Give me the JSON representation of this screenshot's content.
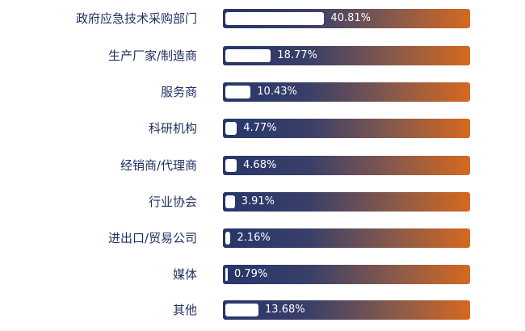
{
  "chart_data": {
    "type": "bar",
    "orientation": "horizontal",
    "categories": [
      "政府应急技术采购部门",
      "生产厂家/制造商",
      "服务商",
      "科研机构",
      "经销商/代理商",
      "行业协会",
      "进出口/贸易公司",
      "媒体",
      "其他"
    ],
    "values": [
      40.81,
      18.77,
      10.43,
      4.77,
      4.68,
      3.91,
      2.16,
      0.79,
      13.68
    ],
    "value_labels": [
      "40.81%",
      "18.77%",
      "10.43%",
      "4.77%",
      "4.68%",
      "3.91%",
      "2.16%",
      "0.79%",
      "13.68%"
    ],
    "title": "",
    "xlabel": "",
    "ylabel": "",
    "xlim": [
      0,
      100
    ],
    "grid": false,
    "colors": {
      "track_start": "#26366b",
      "track_end": "#d5691e",
      "fill": "#ffffff",
      "label": "#1f2f5e"
    }
  }
}
